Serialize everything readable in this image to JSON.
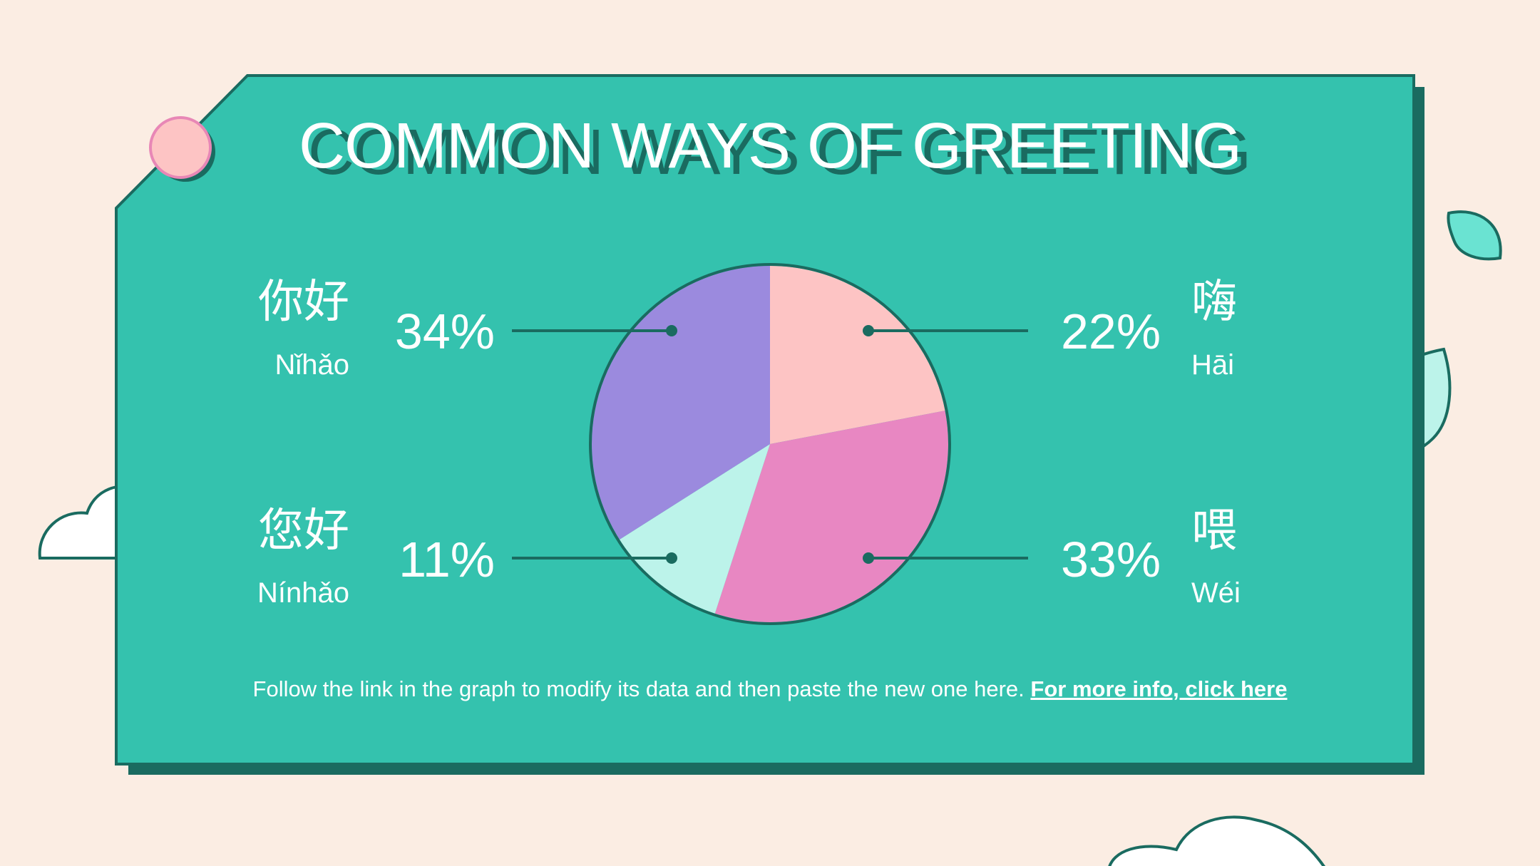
{
  "colors": {
    "background": "#fbede3",
    "card": "#34c2ae",
    "card_dark": "#1a6b60",
    "slice_nihao": "#9b8ade",
    "slice_hai": "#fdc4c4",
    "slice_wei": "#e887c2",
    "slice_ninhao": "#bcf3ea"
  },
  "chart_data": {
    "type": "pie",
    "title": "COMMON WAYS OF GREETING",
    "slices": [
      {
        "label": "嗨",
        "pinyin": "Hāi",
        "value": 22,
        "value_label": "22%",
        "color": "#fdc4c4"
      },
      {
        "label": "喂",
        "pinyin": "Wéi",
        "value": 33,
        "value_label": "33%",
        "color": "#e887c2"
      },
      {
        "label": "您好",
        "pinyin": "Nínhǎo",
        "value": 11,
        "value_label": "11%",
        "color": "#bcf3ea"
      },
      {
        "label": "你好",
        "pinyin": "Nǐhǎo",
        "value": 34,
        "value_label": "34%",
        "color": "#9b8ade"
      }
    ]
  },
  "footer": {
    "text": "Follow the link in the graph to modify its data and then paste the new one here.",
    "link": "For more info, click here"
  }
}
